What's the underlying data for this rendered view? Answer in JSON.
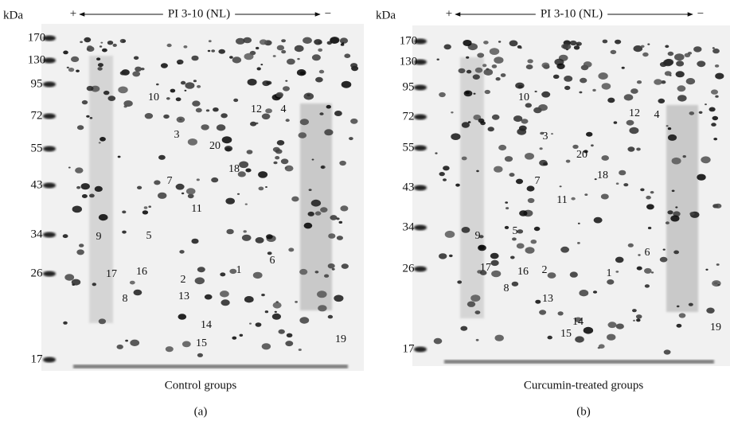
{
  "panels": [
    {
      "direction_plus": "+",
      "axis_label": "PI 3-10 (NL)",
      "direction_minus": "−",
      "unit": "kDa",
      "mw_markers": [
        "170",
        "130",
        "95",
        "72",
        "55",
        "43",
        "34",
        "26",
        "17"
      ],
      "spots": [
        "10",
        "12",
        "4",
        "3",
        "20",
        "18",
        "7",
        "11",
        "9",
        "5",
        "6",
        "17",
        "16",
        "1",
        "2",
        "8",
        "13",
        "14",
        "15",
        "19"
      ],
      "caption": "Control groups",
      "letter": "(a)"
    },
    {
      "direction_plus": "+",
      "axis_label": "PI 3-10 (NL)",
      "direction_minus": "−",
      "unit": "kDa",
      "mw_markers": [
        "170",
        "130",
        "95",
        "72",
        "55",
        "43",
        "34",
        "26",
        "17"
      ],
      "spots": [
        "10",
        "12",
        "4",
        "3",
        "20",
        "18",
        "7",
        "11",
        "9",
        "5",
        "6",
        "17",
        "16",
        "1",
        "2",
        "8",
        "13",
        "14",
        "15",
        "19"
      ],
      "caption": "Curcumin-treated groups",
      "letter": "(b)"
    }
  ]
}
